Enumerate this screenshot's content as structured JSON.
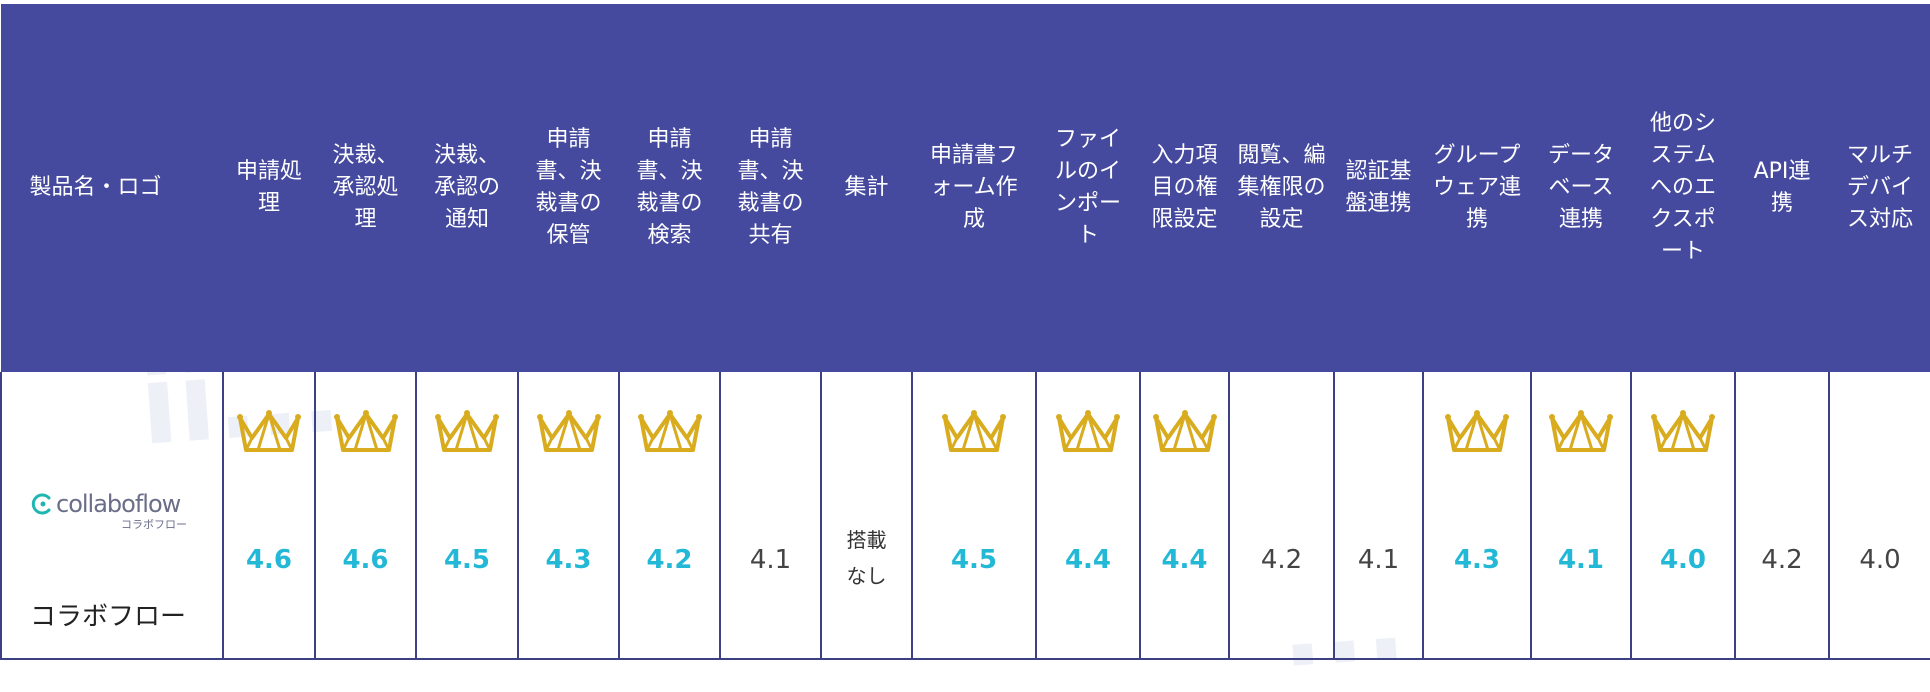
{
  "header": {
    "product_col": "製品名・ロゴ",
    "columns": [
      "申請処理",
      "決裁、承認処理",
      "決裁、承認の通知",
      "申請書、決裁書の保管",
      "申請書、決裁書の検索",
      "申請書、決裁書の共有",
      "集計",
      "申請書フォーム作成",
      "ファイルのインポート",
      "入力項目の権限設定",
      "閲覧、編集権限の設定",
      "認証基盤連携",
      "グループウェア連携",
      "データベース連携",
      "他のシステムへのエクスポート",
      "API連携",
      "マルチデバイス対応"
    ]
  },
  "product": {
    "logo_text": "collaboflow",
    "logo_sub": "コラボフロー",
    "name": "コラボフロー"
  },
  "cells": [
    {
      "value": "4.6",
      "crown": true
    },
    {
      "value": "4.6",
      "crown": true
    },
    {
      "value": "4.5",
      "crown": true
    },
    {
      "value": "4.3",
      "crown": true
    },
    {
      "value": "4.2",
      "crown": true
    },
    {
      "value": "4.1",
      "crown": false
    },
    {
      "value": "搭載なし",
      "crown": false,
      "note": true
    },
    {
      "value": "4.5",
      "crown": true
    },
    {
      "value": "4.4",
      "crown": true
    },
    {
      "value": "4.4",
      "crown": true
    },
    {
      "value": "4.2",
      "crown": false
    },
    {
      "value": "4.1",
      "crown": false
    },
    {
      "value": "4.3",
      "crown": true
    },
    {
      "value": "4.1",
      "crown": true
    },
    {
      "value": "4.0",
      "crown": true
    },
    {
      "value": "4.2",
      "crown": false
    },
    {
      "value": "4.0",
      "crown": false
    }
  ],
  "colors": {
    "header_bg": "#454a9e",
    "highlight_score": "#22b8d6",
    "crown": "#d9ac1f",
    "logo_accent": "#1fb6b1"
  },
  "icons": {
    "crown": "crown-icon",
    "logo": "collaboflow-logo-icon"
  }
}
